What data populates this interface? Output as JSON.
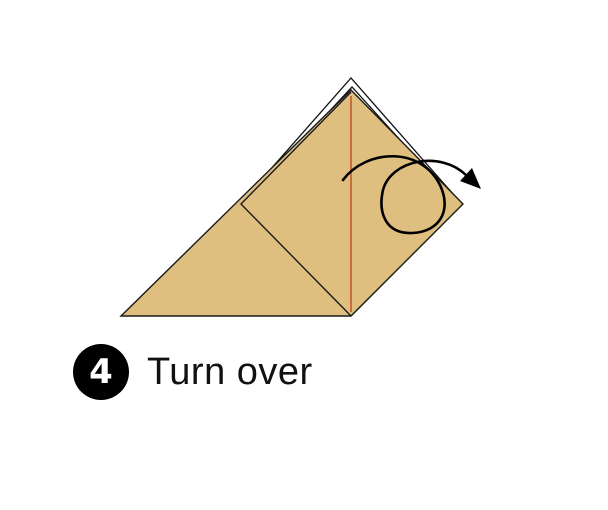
{
  "colors": {
    "paper": "#dfbf80",
    "paper_outline": "#1a1a1a",
    "crease_line": "#c24a20",
    "arrow": "#000000",
    "badge": "#000000",
    "badge_text": "#ffffff"
  },
  "step": {
    "number": "4",
    "instruction": "Turn over"
  },
  "icons": {
    "action": "turn-over-arrow-icon"
  }
}
